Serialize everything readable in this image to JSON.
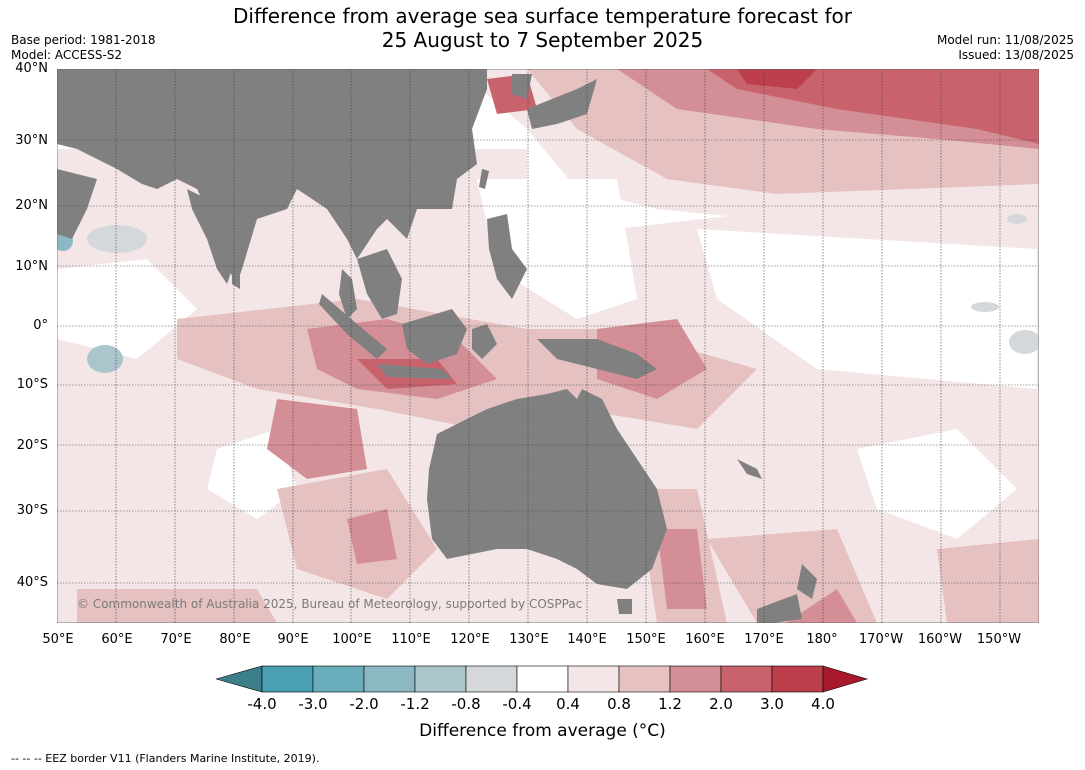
{
  "title_line1": "Difference from average sea surface temperature forecast for",
  "title_line2": "25 August to 7 September 2025",
  "base_period": "Base period: 1981-2018",
  "model": "Model: ACCESS-S2",
  "model_run": "Model run: 11/08/2025",
  "issued": "Issued: 13/08/2025",
  "lat_labels": [
    "40°N",
    "30°N",
    "20°N",
    "10°N",
    "0°",
    "10°S",
    "20°S",
    "30°S",
    "40°S"
  ],
  "lon_labels": [
    "50°E",
    "60°E",
    "70°E",
    "80°E",
    "90°E",
    "100°E",
    "110°E",
    "120°E",
    "130°E",
    "140°E",
    "150°E",
    "160°E",
    "170°E",
    "180°",
    "170°W",
    "160°W",
    "150°W"
  ],
  "colorbar": {
    "ticks": [
      "-4.0",
      "-3.0",
      "-2.0",
      "-1.2",
      "-0.8",
      "-0.4",
      "0.4",
      "0.8",
      "1.2",
      "2.0",
      "3.0",
      "4.0"
    ],
    "colors": [
      "#3b7f8a",
      "#4a9fb2",
      "#6aaebb",
      "#8bb8c3",
      "#aac5cb",
      "#d4d8da",
      "#ffffff",
      "#f4e6e6",
      "#e5c2c1",
      "#d48e95",
      "#c8636d",
      "#bd3f4c",
      "#a8192d"
    ],
    "label": "Difference from average (°C)"
  },
  "copyright": "© Commonwealth of Australia 2025, Bureau of Meteorology, supported by COSPPac",
  "footer": "-- -- -- EEZ border V11 (Flanders Marine Institute, 2019)."
}
